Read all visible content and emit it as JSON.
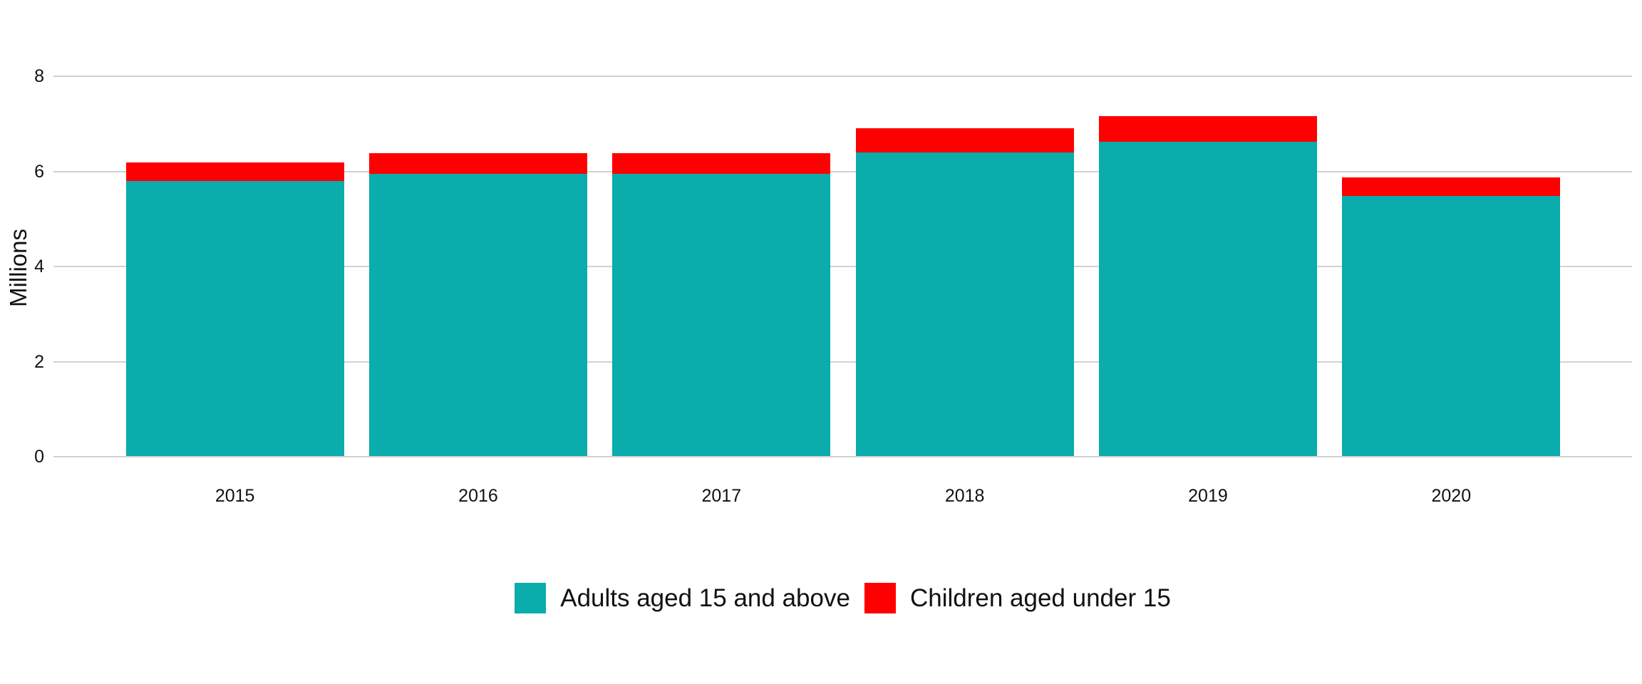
{
  "chart_data": {
    "type": "bar",
    "stacked": true,
    "categories": [
      "2015",
      "2016",
      "2017",
      "2018",
      "2019",
      "2020"
    ],
    "series": [
      {
        "name": "Adults aged 15 and above",
        "color": "#0aacac",
        "values": [
          5.78,
          5.93,
          5.93,
          6.38,
          6.61,
          5.47
        ]
      },
      {
        "name": "Children aged under 15",
        "color": "#ff0000",
        "values": [
          0.4,
          0.44,
          0.44,
          0.51,
          0.53,
          0.39
        ]
      }
    ],
    "totals": [
      6.18,
      6.37,
      6.37,
      6.89,
      7.14,
      5.86
    ],
    "ylabel": "Millions",
    "yticks": [
      0,
      2,
      4,
      6,
      8
    ],
    "ylim": [
      0,
      8
    ],
    "grid": true,
    "gridline_color": "#d2d2d2",
    "text_color": "#111111",
    "background_color": "#ffffff",
    "legend_position": "bottom"
  }
}
